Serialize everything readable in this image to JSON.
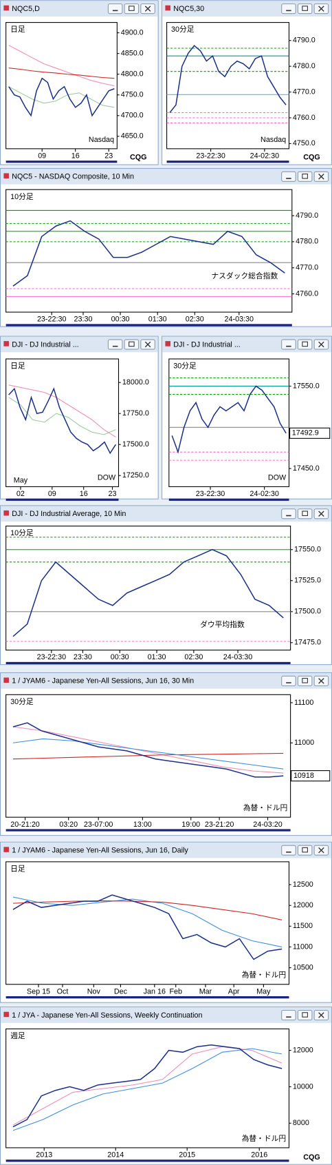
{
  "chart_data": [
    {
      "type": "line",
      "title": "NQC5,D",
      "label": "日足",
      "watermark": "Nasdaq",
      "label_color": "#2233cc",
      "logo": "CQG",
      "ylim": [
        4620,
        4925
      ],
      "yticks": [
        {
          "value": 4900,
          "label": "4900.0"
        },
        {
          "value": 4850,
          "label": "4850.0"
        },
        {
          "value": 4800,
          "label": "4800.0"
        },
        {
          "value": 4750,
          "label": "4750.0"
        },
        {
          "value": 4700,
          "label": "4700.0"
        },
        {
          "value": 4650,
          "label": "4650.0"
        }
      ],
      "xticks": [
        {
          "value": 6,
          "label": "09"
        },
        {
          "value": 12,
          "label": "16"
        },
        {
          "value": 18,
          "label": "23"
        }
      ],
      "series": [
        {
          "color": "#1a2f8a",
          "values": [
            4770,
            4750,
            4745,
            4720,
            4700,
            4760,
            4790,
            4780,
            4740,
            4760,
            4770,
            4740,
            4720,
            4730,
            4750,
            4700,
            4720,
            4740,
            4760,
            4765
          ]
        },
        {
          "color": "#d42020",
          "values": [
            4815,
            4812,
            4808,
            4805,
            4803,
            4800,
            4798,
            4795,
            4792,
            4790
          ]
        },
        {
          "color": "#f08cb4",
          "values": [
            4870,
            4855,
            4840,
            4825,
            4815,
            4805,
            4795,
            4785,
            4778,
            4772
          ]
        },
        {
          "color": "#9acb9a",
          "values": [
            4770,
            4755,
            4740,
            4730,
            4735,
            4750,
            4755,
            4740,
            4725,
            4720
          ]
        }
      ],
      "levels": []
    },
    {
      "type": "line",
      "title": "NQC5,30",
      "label": "30分足",
      "watermark": "Nasdaq",
      "label_color": "#2233cc",
      "logo": "CQG",
      "ylim": [
        4748,
        4797
      ],
      "yticks": [
        {
          "value": 4790,
          "label": "4790.0"
        },
        {
          "value": 4780,
          "label": "4780.0"
        },
        {
          "value": 4770,
          "label": "4770.0"
        },
        {
          "value": 4760,
          "label": "4760.0"
        },
        {
          "value": 4750,
          "label": "4750.0"
        }
      ],
      "xticks": [
        {
          "value": 6.7,
          "label": "23-22:30"
        },
        {
          "value": 15.5,
          "label": "24-02:30"
        }
      ],
      "series": [
        {
          "color": "#1a2f8a",
          "values": [
            4762,
            4765,
            4780,
            4785,
            4788,
            4786,
            4782,
            4784,
            4778,
            4776,
            4780,
            4782,
            4781,
            4779,
            4783,
            4784,
            4776,
            4772,
            4768,
            4765
          ]
        }
      ],
      "levels": [
        {
          "value": 4787,
          "color": "#00a000",
          "dash": true
        },
        {
          "value": 4784,
          "color": "#009999",
          "dash": false
        },
        {
          "value": 4778,
          "color": "#00a000",
          "dash": true
        },
        {
          "value": 4769,
          "color": "#5fb0f0",
          "dash": false
        },
        {
          "value": 4762,
          "color": "#ff66cc",
          "dash": true
        },
        {
          "value": 4760,
          "color": "#ff66cc",
          "dash": true
        },
        {
          "value": 4758,
          "color": "#ff66cc",
          "dash": true
        }
      ]
    },
    {
      "type": "line",
      "title": "NQC5 - NASDAQ Composite, 10 Min",
      "label": "10分足",
      "watermark": "ナスダック総合指数",
      "label_color": "#2233cc",
      "ylim": [
        4753,
        4800
      ],
      "yticks": [
        {
          "value": 4790,
          "label": "4790.0"
        },
        {
          "value": 4780,
          "label": "4780.0"
        },
        {
          "value": 4770,
          "label": "4770.0"
        },
        {
          "value": 4760,
          "label": "4760.0"
        }
      ],
      "xticks": [
        {
          "value": 2.7,
          "label": "23-22:30"
        },
        {
          "value": 4.9,
          "label": "23:30"
        },
        {
          "value": 7.5,
          "label": "00:30"
        },
        {
          "value": 10.1,
          "label": "01:30"
        },
        {
          "value": 12.7,
          "label": "02:30"
        },
        {
          "value": 15.8,
          "label": "24-03:30"
        }
      ],
      "series": [
        {
          "color": "#1a2f8a",
          "values": [
            4763,
            4767,
            4782,
            4786,
            4788,
            4784,
            4781,
            4774,
            4774,
            4776,
            4779,
            4782,
            4781,
            4780,
            4779,
            4784,
            4782,
            4775,
            4772,
            4768
          ]
        }
      ],
      "levels": [
        {
          "value": 4792,
          "color": "#00a000",
          "dash": false
        },
        {
          "value": 4787,
          "color": "#00a000",
          "dash": true
        },
        {
          "value": 4784,
          "color": "#00a000",
          "dash": false
        },
        {
          "value": 4780,
          "color": "#00a000",
          "dash": true
        },
        {
          "value": 4772,
          "color": "#888888",
          "dash": false
        },
        {
          "value": 4762,
          "color": "#ff66cc",
          "dash": true
        },
        {
          "value": 4759,
          "color": "#ff66cc",
          "dash": false
        }
      ]
    },
    {
      "type": "line",
      "title": "DJI - DJ Industrial ...",
      "label": "日足",
      "watermark": "DOW",
      "label_color": "#cc2222",
      "ylim": [
        17160,
        18190
      ],
      "yticks": [
        {
          "value": 18000,
          "label": "18000.0"
        },
        {
          "value": 17750,
          "label": "17750.0"
        },
        {
          "value": 17500,
          "label": "17500.0"
        },
        {
          "value": 17250,
          "label": "17250.0"
        }
      ],
      "xticks": [
        {
          "value": 2.1,
          "label": "02"
        },
        {
          "value": 7.7,
          "label": "09"
        },
        {
          "value": 13.3,
          "label": "16"
        },
        {
          "value": 18.4,
          "label": "23"
        }
      ],
      "month_label": {
        "value": 2.1,
        "label": "May"
      },
      "series": [
        {
          "color": "#1a2f8a",
          "values": [
            17900,
            17950,
            17800,
            17700,
            17880,
            17750,
            17760,
            17850,
            17950,
            17800,
            17700,
            17600,
            17550,
            17520,
            17500,
            17450,
            17480,
            17520,
            17430,
            17500
          ]
        },
        {
          "color": "#f08cb4",
          "values": [
            17980,
            17960,
            17940,
            17920,
            17880,
            17820,
            17760,
            17700,
            17620,
            17560
          ]
        },
        {
          "color": "#9acb9a",
          "values": [
            17880,
            17820,
            17700,
            17680,
            17750,
            17720,
            17650,
            17600,
            17580,
            17620
          ]
        }
      ],
      "levels": []
    },
    {
      "type": "line",
      "title": "DJI - DJ Industrial ...",
      "label": "30分足",
      "watermark": "DOW",
      "label_color": "#cc2222",
      "price_box": true,
      "ylim": [
        17428,
        17583
      ],
      "yticks": [
        {
          "value": 17550,
          "label": "17550.0"
        },
        {
          "value": 17450,
          "label": "17450.0"
        }
      ],
      "xticks": [
        {
          "value": 6.4,
          "label": "23-22:30"
        },
        {
          "value": 15.4,
          "label": "24-02:30"
        }
      ],
      "series": [
        {
          "color": "#1a2f8a",
          "values": [
            17490,
            17470,
            17500,
            17520,
            17530,
            17510,
            17500,
            17515,
            17525,
            17520,
            17525,
            17530,
            17520,
            17540,
            17550,
            17545,
            17535,
            17525,
            17505,
            17492.9
          ]
        }
      ],
      "levels": [
        {
          "value": 17560,
          "color": "#00a000",
          "dash": true
        },
        {
          "value": 17550,
          "color": "#009999",
          "dash": false
        },
        {
          "value": 17540,
          "color": "#00a000",
          "dash": true
        },
        {
          "value": 17500,
          "color": "#888888",
          "dash": false
        },
        {
          "value": 17470,
          "color": "#ff66cc",
          "dash": true
        },
        {
          "value": 17460,
          "color": "#ff66cc",
          "dash": true
        }
      ]
    },
    {
      "type": "line",
      "title": "DJI - DJ Industrial Average, 10 Min",
      "label": "10分足",
      "watermark": "ダウ平均指数",
      "label_color": "#cc2222",
      "ylim": [
        17469,
        17569
      ],
      "yticks": [
        {
          "value": 17550,
          "label": "17550.0"
        },
        {
          "value": 17525,
          "label": "17525.0"
        },
        {
          "value": 17500,
          "label": "17500.0"
        },
        {
          "value": 17475,
          "label": "17475.0"
        }
      ],
      "xticks": [
        {
          "value": 2.7,
          "label": "23-22:30"
        },
        {
          "value": 4.9,
          "label": "23:30"
        },
        {
          "value": 7.5,
          "label": "00:30"
        },
        {
          "value": 10.1,
          "label": "01:30"
        },
        {
          "value": 12.7,
          "label": "02:30"
        },
        {
          "value": 15.8,
          "label": "24-03:30"
        }
      ],
      "series": [
        {
          "color": "#1a2f8a",
          "values": [
            17480,
            17490,
            17525,
            17540,
            17530,
            17520,
            17510,
            17505,
            17515,
            17520,
            17525,
            17530,
            17540,
            17545,
            17550,
            17545,
            17530,
            17510,
            17505,
            17495
          ]
        }
      ],
      "levels": [
        {
          "value": 17560,
          "color": "#00a000",
          "dash": true
        },
        {
          "value": 17550,
          "color": "#00a000",
          "dash": false
        },
        {
          "value": 17540,
          "color": "#00a000",
          "dash": true
        },
        {
          "value": 17500,
          "color": "#888888",
          "dash": false
        },
        {
          "value": 17476,
          "color": "#ff66cc",
          "dash": true
        }
      ]
    },
    {
      "type": "line",
      "title": "1 / JYAM6 - Japanese Yen-All Sessions, Jun 16, 30 Min",
      "label": "30分足",
      "watermark": "為替・ドル円",
      "label_color": "#1a9a3a",
      "price_box": true,
      "ylim": [
        10815,
        11120
      ],
      "yticks": [
        11100,
        11000
      ],
      "xticks": [
        {
          "value": 0.85,
          "label": "20-21:20"
        },
        {
          "value": 3.9,
          "label": "03:20"
        },
        {
          "value": 6,
          "label": "23-07:00"
        },
        {
          "value": 9.1,
          "label": "13:00"
        },
        {
          "value": 12.5,
          "label": "19:00"
        },
        {
          "value": 14.5,
          "label": "23-21:20"
        },
        {
          "value": 17.9,
          "label": "24-03:20"
        }
      ],
      "series": [
        {
          "color": "#1a2f8a",
          "values": [
            11040,
            11050,
            11030,
            11020,
            11010,
            11000,
            10990,
            10985,
            10980,
            10970,
            10960,
            10955,
            10950,
            10945,
            10940,
            10935,
            10925,
            10915,
            10915,
            10918
          ]
        },
        {
          "color": "#3a8ee0",
          "values": [
            11000,
            11010,
            11005,
            10995,
            10985,
            10975,
            10965,
            10955,
            10945,
            10935
          ]
        },
        {
          "color": "#d42020",
          "values": [
            10960,
            10962,
            10964,
            10966,
            10968,
            10970,
            10971,
            10972,
            10973,
            10974
          ]
        },
        {
          "color": "#f08cb4",
          "values": [
            11040,
            11030,
            11015,
            11000,
            10985,
            10970,
            10955,
            10940,
            10930,
            10925
          ]
        }
      ],
      "levels": []
    },
    {
      "type": "line",
      "title": "1 / JYAM6 - Japanese Yen-All Sessions, Jun 16, Daily",
      "label": "日足",
      "watermark": "為替・ドル円",
      "label_color": "#1a9a3a",
      "ylim": [
        10100,
        13050
      ],
      "yticks": [
        12500,
        12000,
        11500,
        11000,
        10500
      ],
      "xticks": [
        {
          "value": 1.8,
          "label": "Sep 15"
        },
        {
          "value": 3.5,
          "label": "Oct"
        },
        {
          "value": 5.7,
          "label": "Nov"
        },
        {
          "value": 7.6,
          "label": "Dec"
        },
        {
          "value": 10,
          "label": "Jan 16"
        },
        {
          "value": 11.5,
          "label": "Feb"
        },
        {
          "value": 13.6,
          "label": "Mar"
        },
        {
          "value": 15.6,
          "label": "Apr"
        },
        {
          "value": 17.7,
          "label": "May"
        }
      ],
      "series": [
        {
          "color": "#1a2f8a",
          "values": [
            11900,
            12100,
            11950,
            12000,
            12050,
            12100,
            12100,
            12250,
            12150,
            12050,
            11950,
            11800,
            11200,
            11300,
            11100,
            11000,
            11200,
            10700,
            10900,
            10950
          ]
        },
        {
          "color": "#d42020",
          "values": [
            12050,
            12080,
            12100,
            12110,
            12100,
            12080,
            12000,
            11900,
            11800,
            11650
          ]
        },
        {
          "color": "#3a8ee0",
          "values": [
            12200,
            12050,
            12000,
            12080,
            12150,
            12050,
            11800,
            11400,
            11150,
            11000
          ]
        }
      ],
      "levels": []
    },
    {
      "type": "line",
      "title": "1 / JYA - Japanese Yen-All Sessions, Weekly Continuation",
      "label": "週足",
      "watermark": "為替・ドル円",
      "label_color": "#1a9a3a",
      "logo": "CQG",
      "ylim": [
        6650,
        13180
      ],
      "yticks": [
        12000,
        10000,
        8000
      ],
      "xticks": [
        {
          "value": 2.2,
          "label": "2013"
        },
        {
          "value": 7.25,
          "label": "2014"
        },
        {
          "value": 12.3,
          "label": "2015"
        },
        {
          "value": 17.4,
          "label": "2016"
        }
      ],
      "series": [
        {
          "color": "#1a2f8a",
          "values": [
            7800,
            8200,
            9500,
            9800,
            10000,
            9800,
            10100,
            10200,
            10300,
            10400,
            11000,
            12000,
            11900,
            12200,
            12300,
            12200,
            12100,
            11500,
            11200,
            11000
          ]
        },
        {
          "color": "#3a8ee0",
          "values": [
            7600,
            8200,
            9000,
            9600,
            9900,
            10200,
            11000,
            11900,
            12100,
            11800
          ]
        },
        {
          "color": "#f08cb4",
          "values": [
            7900,
            8800,
            9700,
            9900,
            10100,
            10400,
            11800,
            12200,
            12000,
            11300
          ]
        }
      ],
      "levels": []
    }
  ]
}
